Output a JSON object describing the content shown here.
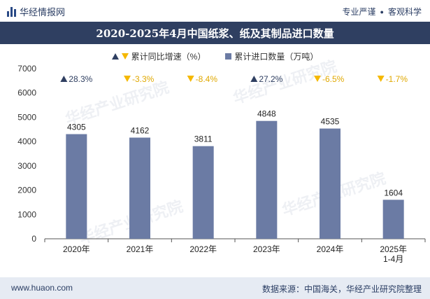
{
  "brand": {
    "name": "华经情报网",
    "slogan_left": "专业严谨",
    "slogan_right": "客观科学"
  },
  "title": "2020-2025年4月中国纸浆、纸及其制品进口数量",
  "legend": {
    "growth": "累计同比增速（%）",
    "quantity": "累计进口数量（万吨）"
  },
  "colors": {
    "bar": "#6b7ba4",
    "up": "#2f3f61",
    "down": "#f5b800",
    "title_bg": "#2f3f61"
  },
  "watermark": "华经产业研究院",
  "watermark_url": "www.huaon.com",
  "chart_data": {
    "type": "bar",
    "title": "2020-2025年4月中国纸浆、纸及其制品进口数量",
    "categories": [
      "2020年",
      "2021年",
      "2022年",
      "2023年",
      "2024年",
      "2025年\n1-4月"
    ],
    "series": [
      {
        "name": "累计进口数量（万吨）",
        "values": [
          4305,
          4162,
          3811,
          4848,
          4535,
          1604
        ]
      },
      {
        "name": "累计同比增速（%）",
        "values": [
          28.3,
          -3.3,
          -8.4,
          27.2,
          -6.5,
          -1.7
        ],
        "labels": [
          "28.3%",
          "-3.3%",
          "-8.4%",
          "27.2%",
          "-6.5%",
          "-1.7%"
        ]
      }
    ],
    "ylim": [
      0,
      7000
    ],
    "yticks": [
      0,
      1000,
      2000,
      3000,
      4000,
      5000,
      6000,
      7000
    ],
    "xlabel": "",
    "ylabel": ""
  },
  "footer": {
    "website": "www.huaon.com",
    "source": "数据来源：中国海关，华经产业研究院整理"
  }
}
